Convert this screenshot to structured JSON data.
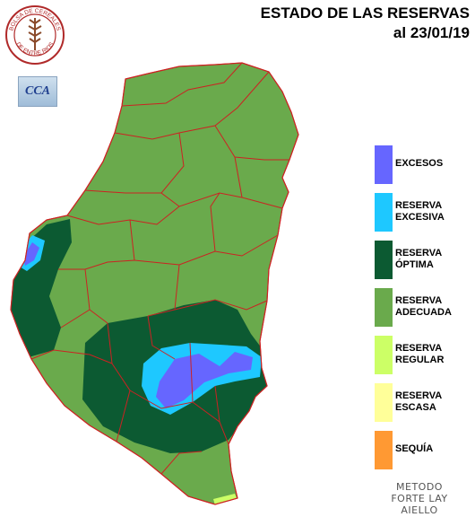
{
  "header": {
    "title": "ESTADO DE LAS RESERVAS",
    "date_line": "al 23/01/19"
  },
  "logos": {
    "bolsa_text_top": "BOLSA DE CEREALES",
    "bolsa_text_bottom": "DE ENTRE RIOS",
    "cca_text": "CCA"
  },
  "colors": {
    "excesos": "#6666ff",
    "reserva_excesiva": "#1ec8ff",
    "reserva_optima": "#0c5a32",
    "reserva_adecuada": "#6aaa4c",
    "reserva_regular": "#ccff66",
    "reserva_escasa": "#ffff99",
    "sequia": "#ff9933",
    "boundary": "#cc2222"
  },
  "legend": [
    {
      "label": "EXCESOS",
      "color": "#6666ff"
    },
    {
      "label": "RESERVA EXCESIVA",
      "color": "#1ec8ff"
    },
    {
      "label": "RESERVA ÓPTIMA",
      "color": "#0c5a32"
    },
    {
      "label": "RESERVA ADECUADA",
      "color": "#6aaa4c"
    },
    {
      "label": "RESERVA REGULAR",
      "color": "#ccff66"
    },
    {
      "label": "RESERVA ESCASA",
      "color": "#ffff99"
    },
    {
      "label": "SEQUÍA",
      "color": "#ff9933"
    }
  ],
  "method": {
    "line1": "METODO",
    "line2": "FORTE LAY",
    "line3": "AIELLO"
  }
}
